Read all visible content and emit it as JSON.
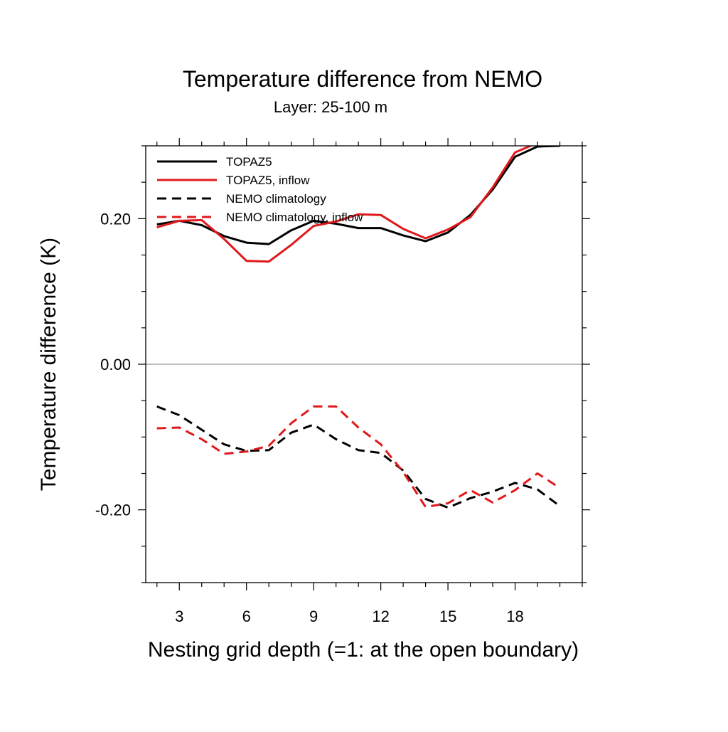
{
  "chart_data": {
    "type": "line",
    "title": "Temperature difference from NEMO",
    "subtitle": "Layer: 25-100 m",
    "xlabel": "Nesting grid depth (=1: at the open boundary)",
    "ylabel": "Temperature difference (K)",
    "xlim": [
      1.5,
      21
    ],
    "ylim": [
      -0.3,
      0.3
    ],
    "x_ticks": [
      3,
      6,
      9,
      12,
      15,
      18
    ],
    "x_tick_labels": [
      "3",
      "6",
      "9",
      "12",
      "15",
      "18"
    ],
    "y_ticks": [
      -0.2,
      0.0,
      0.2
    ],
    "y_tick_labels": [
      "-0.20",
      "0.00",
      "0.20"
    ],
    "x_minor_step": 1,
    "y_minor_step": 0.05,
    "zero_line": true,
    "grid": false,
    "legend_position": "top-left",
    "series": [
      {
        "name": "TOPAZ5",
        "color": "#000000",
        "dash": "solid",
        "x": [
          2,
          3,
          4,
          5,
          6,
          7,
          8,
          9,
          10,
          11,
          12,
          13,
          14,
          15,
          16,
          17,
          18,
          19,
          20
        ],
        "values": [
          0.192,
          0.197,
          0.191,
          0.176,
          0.167,
          0.165,
          0.184,
          0.197,
          0.193,
          0.187,
          0.187,
          0.177,
          0.169,
          0.181,
          0.205,
          0.24,
          0.285,
          0.299,
          0.3
        ]
      },
      {
        "name": "TOPAZ5, inflow",
        "color": "#e0191b",
        "dash": "solid",
        "x": [
          2,
          3,
          4,
          5,
          6,
          7,
          8,
          9,
          10,
          11,
          12,
          13,
          14,
          15,
          16,
          17,
          18,
          19
        ],
        "values": [
          0.188,
          0.197,
          0.198,
          0.172,
          0.142,
          0.141,
          0.164,
          0.19,
          0.196,
          0.206,
          0.205,
          0.186,
          0.173,
          0.185,
          0.202,
          0.243,
          0.291,
          0.304
        ]
      },
      {
        "name": "NEMO climatology",
        "color": "#000000",
        "dash": "dashed",
        "x": [
          2,
          3,
          4,
          5,
          6,
          7,
          8,
          9,
          10,
          11,
          12,
          13,
          14,
          15,
          16,
          17,
          18,
          19,
          20
        ],
        "values": [
          -0.058,
          -0.07,
          -0.09,
          -0.11,
          -0.119,
          -0.118,
          -0.094,
          -0.083,
          -0.103,
          -0.118,
          -0.122,
          -0.146,
          -0.185,
          -0.197,
          -0.184,
          -0.175,
          -0.163,
          -0.172,
          -0.195
        ]
      },
      {
        "name": "NEMO climatology, inflow",
        "color": "#e0191b",
        "dash": "dashed",
        "x": [
          2,
          3,
          4,
          5,
          6,
          7,
          8,
          9,
          10,
          11,
          12,
          13,
          14,
          15,
          16,
          17,
          18,
          19,
          20
        ],
        "values": [
          -0.088,
          -0.087,
          -0.103,
          -0.123,
          -0.12,
          -0.112,
          -0.081,
          -0.058,
          -0.058,
          -0.087,
          -0.11,
          -0.148,
          -0.196,
          -0.191,
          -0.173,
          -0.19,
          -0.173,
          -0.15,
          -0.17
        ]
      }
    ]
  }
}
